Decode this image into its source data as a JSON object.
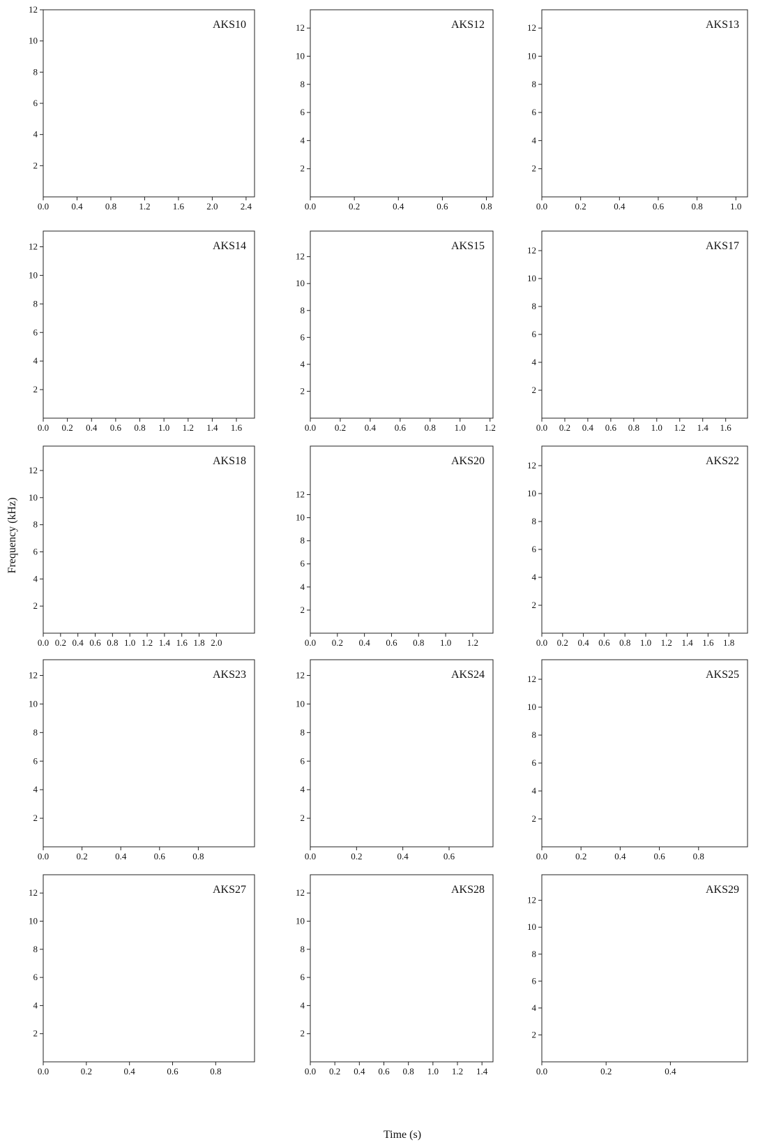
{
  "axis_labels": {
    "y": "Frequency (kHz)",
    "x": "Time (s)"
  },
  "chart_data": [
    {
      "type": "spectrogram",
      "title": "AKS10",
      "xlim": [
        0,
        2.5
      ],
      "xticks": [
        {
          "value": 0,
          "label": "0.0"
        },
        0.4,
        0.8,
        1.2,
        1.6,
        {
          "value": 2,
          "label": "2.0"
        },
        2.4
      ],
      "ylim": [
        0,
        12
      ],
      "yticks": [
        2,
        4,
        6,
        8,
        10,
        12
      ]
    },
    {
      "type": "spectrogram",
      "title": "AKS12",
      "xlim": [
        0,
        0.83
      ],
      "xticks": [
        {
          "value": 0,
          "label": "0.0"
        },
        0.2,
        0.4,
        0.6,
        0.8
      ],
      "ylim": [
        0,
        13.3
      ],
      "yticks": [
        2,
        4,
        6,
        8,
        10,
        12
      ]
    },
    {
      "type": "spectrogram",
      "title": "AKS13",
      "xlim": [
        0,
        1.06
      ],
      "xticks": [
        {
          "value": 0,
          "label": "0.0"
        },
        0.2,
        0.4,
        0.6,
        0.8,
        {
          "value": 1,
          "label": "1.0"
        }
      ],
      "ylim": [
        0,
        13.3
      ],
      "yticks": [
        2,
        4,
        6,
        8,
        10,
        12
      ]
    },
    {
      "type": "spectrogram",
      "title": "AKS14",
      "xlim": [
        0,
        1.75
      ],
      "xticks": [
        {
          "value": 0,
          "label": "0.0"
        },
        0.2,
        0.4,
        0.6,
        0.8,
        {
          "value": 1,
          "label": "1.0"
        },
        1.2,
        1.4,
        1.6
      ],
      "ylim": [
        0,
        13.1
      ],
      "yticks": [
        2,
        4,
        6,
        8,
        10,
        12
      ]
    },
    {
      "type": "spectrogram",
      "title": "AKS15",
      "xlim": [
        0,
        1.22
      ],
      "xticks": [
        {
          "value": 0,
          "label": "0.0"
        },
        0.2,
        0.4,
        0.6,
        0.8,
        {
          "value": 1,
          "label": "1.0"
        },
        1.2
      ],
      "ylim": [
        0,
        13.9
      ],
      "yticks": [
        2,
        4,
        6,
        8,
        10,
        12
      ]
    },
    {
      "type": "spectrogram",
      "title": "AKS17",
      "xlim": [
        0,
        1.79
      ],
      "xticks": [
        {
          "value": 0,
          "label": "0.0"
        },
        0.2,
        0.4,
        0.6,
        0.8,
        {
          "value": 1,
          "label": "1.0"
        },
        1.2,
        1.4,
        1.6
      ],
      "ylim": [
        0,
        13.4
      ],
      "yticks": [
        2,
        4,
        6,
        8,
        10,
        12
      ]
    },
    {
      "type": "spectrogram",
      "title": "AKS18",
      "xlim": [
        0,
        2.44
      ],
      "xticks": [
        {
          "value": 0,
          "label": "0.0"
        },
        0.2,
        0.4,
        0.6,
        0.8,
        {
          "value": 1,
          "label": "1.0"
        },
        1.2,
        1.4,
        1.6,
        1.8,
        {
          "value": 2,
          "label": "2.0"
        }
      ],
      "ylim": [
        0,
        13.8
      ],
      "yticks": [
        2,
        4,
        6,
        8,
        10,
        12
      ]
    },
    {
      "type": "spectrogram",
      "title": "AKS20",
      "xlim": [
        0,
        1.35
      ],
      "xticks": [
        {
          "value": 0,
          "label": "0.0"
        },
        0.2,
        0.4,
        0.6,
        0.8,
        {
          "value": 1,
          "label": "1.0"
        },
        1.2
      ],
      "ylim": [
        0,
        16.2
      ],
      "yticks": [
        2,
        4,
        6,
        8,
        10,
        12
      ]
    },
    {
      "type": "spectrogram",
      "title": "AKS22",
      "xlim": [
        0,
        1.98
      ],
      "xticks": [
        {
          "value": 0,
          "label": "0.0"
        },
        0.2,
        0.4,
        0.6,
        0.8,
        {
          "value": 1,
          "label": "1.0"
        },
        1.2,
        1.4,
        1.6,
        1.8
      ],
      "ylim": [
        0,
        13.4
      ],
      "yticks": [
        2,
        4,
        6,
        8,
        10,
        12
      ]
    },
    {
      "type": "spectrogram",
      "title": "AKS23",
      "xlim": [
        0,
        1.09
      ],
      "xticks": [
        {
          "value": 0,
          "label": "0.0"
        },
        0.2,
        0.4,
        0.6,
        0.8
      ],
      "ylim": [
        0,
        13.1
      ],
      "yticks": [
        2,
        4,
        6,
        8,
        10,
        12
      ]
    },
    {
      "type": "spectrogram",
      "title": "AKS24",
      "xlim": [
        0,
        0.79
      ],
      "xticks": [
        {
          "value": 0,
          "label": "0.0"
        },
        0.2,
        0.4,
        0.6
      ],
      "ylim": [
        0,
        13.1
      ],
      "yticks": [
        2,
        4,
        6,
        8,
        10,
        12
      ]
    },
    {
      "type": "spectrogram",
      "title": "AKS25",
      "xlim": [
        0,
        1.05
      ],
      "xticks": [
        {
          "value": 0,
          "label": "0.0"
        },
        0.2,
        0.4,
        0.6,
        0.8
      ],
      "ylim": [
        0,
        13.4
      ],
      "yticks": [
        2,
        4,
        6,
        8,
        10,
        12
      ]
    },
    {
      "type": "spectrogram",
      "title": "AKS27",
      "xlim": [
        0,
        0.98
      ],
      "xticks": [
        {
          "value": 0,
          "label": "0.0"
        },
        0.2,
        0.4,
        0.6,
        0.8
      ],
      "ylim": [
        0,
        13.3
      ],
      "yticks": [
        2,
        4,
        6,
        8,
        10,
        12
      ]
    },
    {
      "type": "spectrogram",
      "title": "AKS28",
      "xlim": [
        0,
        1.49
      ],
      "xticks": [
        {
          "value": 0,
          "label": "0.0"
        },
        0.2,
        0.4,
        0.6,
        0.8,
        {
          "value": 1,
          "label": "1.0"
        },
        1.2,
        1.4
      ],
      "ylim": [
        0,
        13.3
      ],
      "yticks": [
        2,
        4,
        6,
        8,
        10,
        12
      ]
    },
    {
      "type": "spectrogram",
      "title": "AKS29",
      "xlim": [
        0,
        0.64
      ],
      "xticks": [
        {
          "value": 0,
          "label": "0.0"
        },
        0.2,
        0.4
      ],
      "ylim": [
        0,
        13.9
      ],
      "yticks": [
        2,
        4,
        6,
        8,
        10,
        12
      ]
    }
  ]
}
